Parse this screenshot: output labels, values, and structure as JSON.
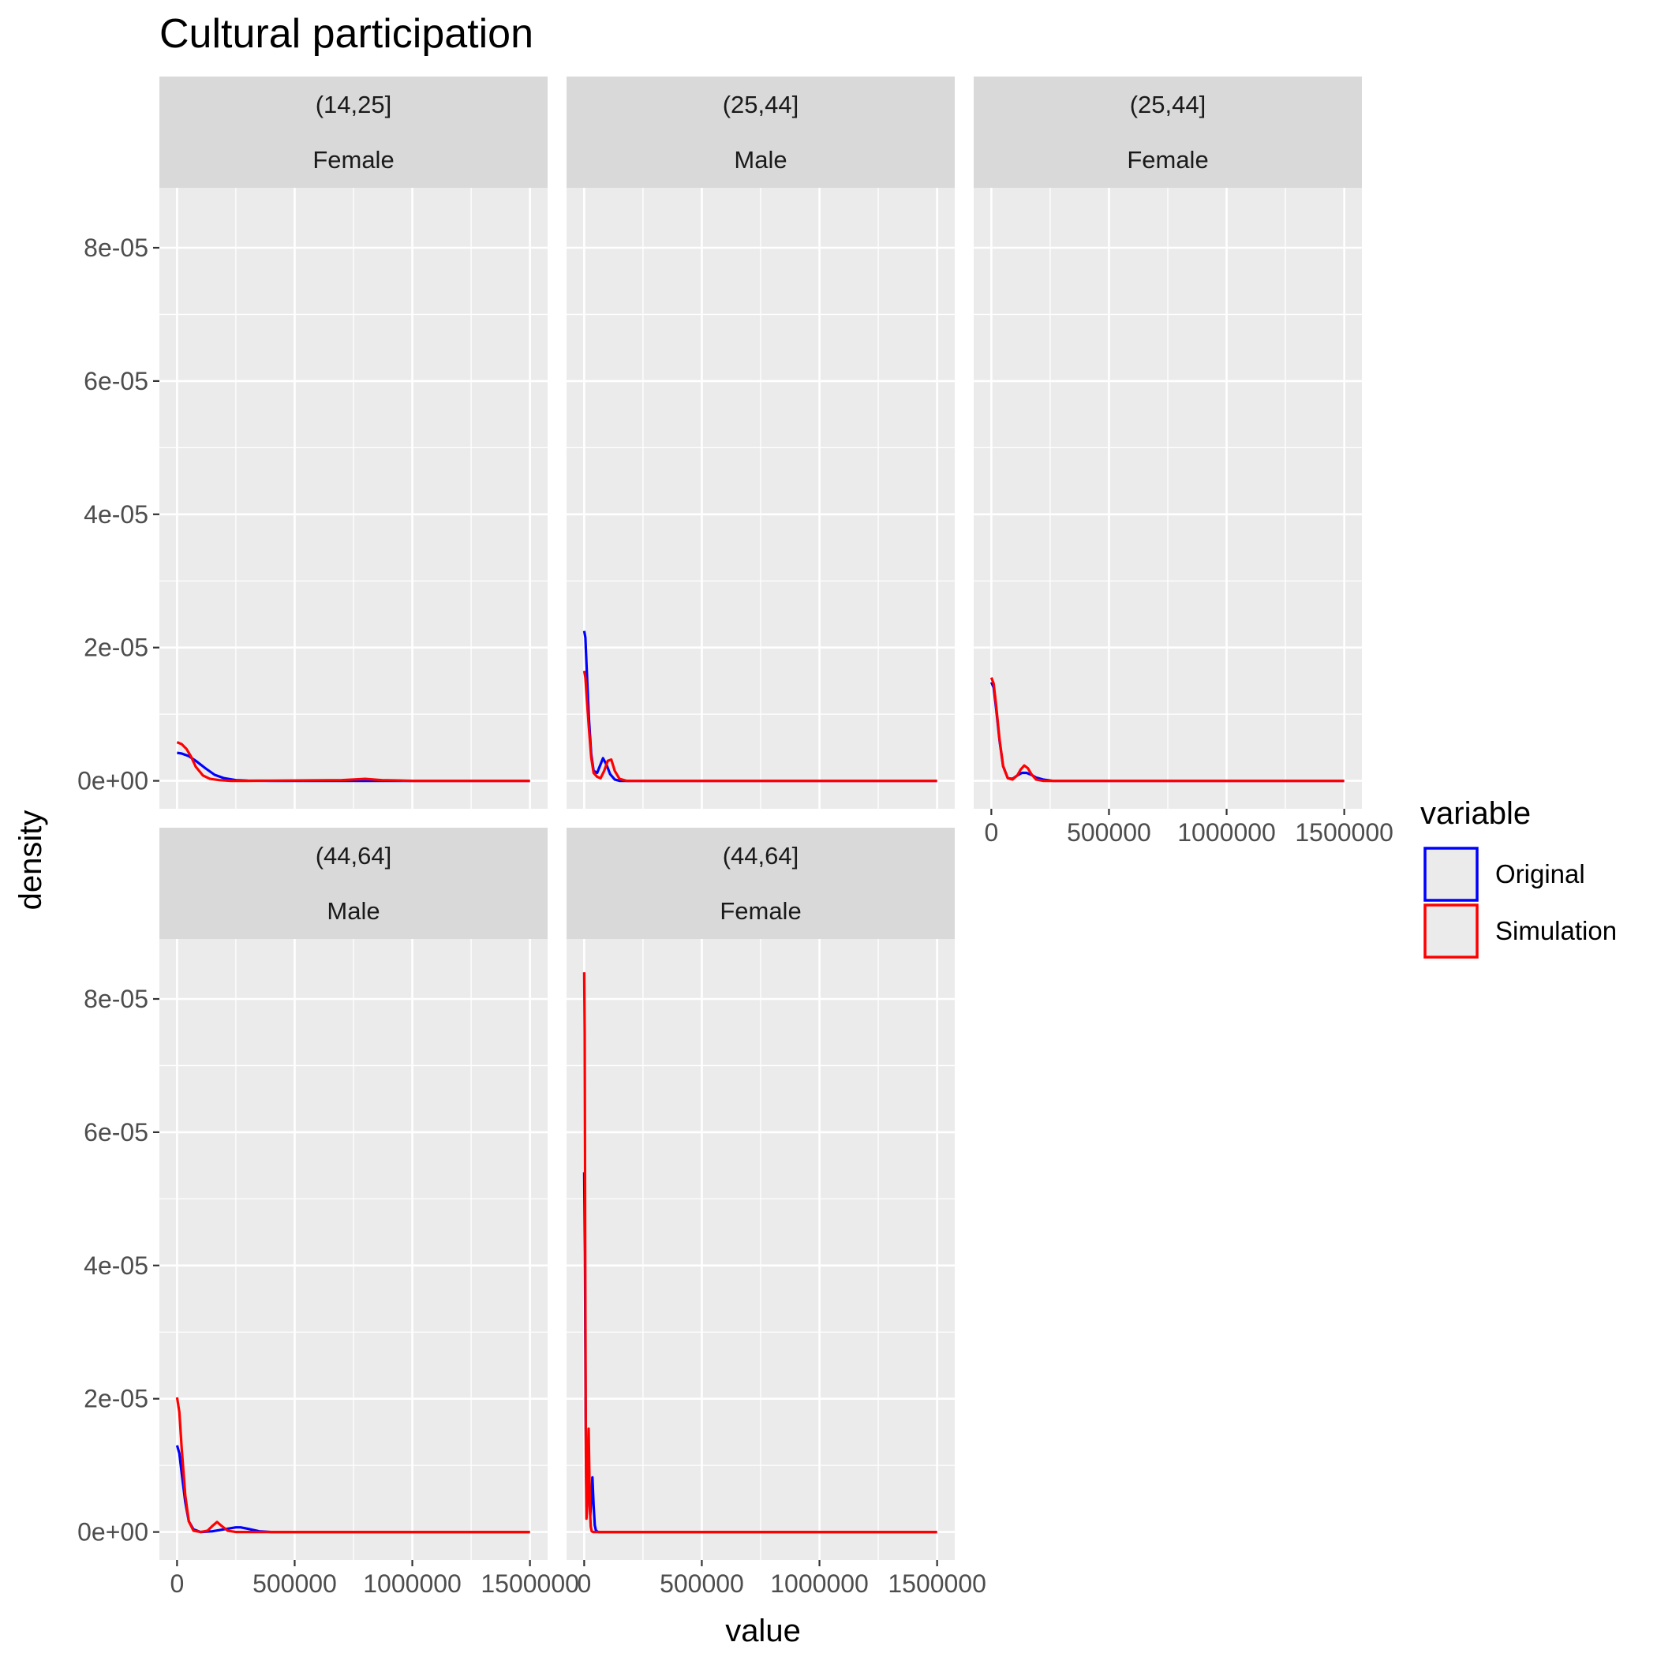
{
  "chart_data": {
    "type": "line",
    "title": "Cultural participation",
    "xlabel": "value",
    "ylabel": "density",
    "xlim": [
      0,
      1500000
    ],
    "ylim": [
      0,
      9e-05
    ],
    "x_ticks": [
      0,
      500000,
      1000000,
      1500000
    ],
    "x_tick_labels": [
      "0",
      "500000",
      "1000000",
      "1500000"
    ],
    "y_ticks": [
      0,
      2e-05,
      4e-05,
      6e-05,
      8e-05
    ],
    "y_tick_labels": [
      "0e+00",
      "2e-05",
      "4e-05",
      "6e-05",
      "8e-05"
    ],
    "grid": true,
    "legend": {
      "title": "variable",
      "position": "right",
      "entries": [
        {
          "name": "Original",
          "color": "#0000ff"
        },
        {
          "name": "Simulation",
          "color": "#ff0000"
        }
      ]
    },
    "colors": {
      "Original": "#0000ff",
      "Simulation": "#ff0000"
    },
    "panels": [
      {
        "strip": [
          "(14,25]",
          "Female"
        ],
        "series": [
          {
            "name": "Original",
            "x": [
              0,
              20000,
              50000,
              80000,
              120000,
              160000,
              200000,
              250000,
              300000,
              400000,
              600000,
              800000,
              1000000,
              1500000
            ],
            "values": [
              4.2e-06,
              4.1e-06,
              3.7e-06,
              3e-06,
              1.9e-06,
              9e-07,
              4e-07,
              1e-07,
              3e-08,
              0,
              0,
              0,
              0,
              0
            ]
          },
          {
            "name": "Simulation",
            "x": [
              0,
              20000,
              40000,
              60000,
              80000,
              110000,
              140000,
              180000,
              230000,
              300000,
              700000,
              800000,
              870000,
              1000000,
              1500000
            ],
            "values": [
              5.8e-06,
              5.5e-06,
              4.8e-06,
              3.6e-06,
              2.1e-06,
              8e-07,
              3e-07,
              1e-07,
              0,
              0,
              1e-07,
              3e-07,
              1e-07,
              0,
              0
            ]
          }
        ]
      },
      {
        "strip": [
          "(25,44]",
          "Male"
        ],
        "series": [
          {
            "name": "Original",
            "x": [
              0,
              5000,
              10000,
              20000,
              30000,
              40000,
              55000,
              70000,
              80000,
              95000,
              110000,
              130000,
              150000,
              200000,
              1500000
            ],
            "values": [
              2.25e-05,
              2.15e-05,
              1.75e-05,
              9.5e-06,
              4e-06,
              1.5e-06,
              1.2e-06,
              2.5e-06,
              3.4e-06,
              2.4e-06,
              1e-06,
              2e-07,
              0,
              0,
              0
            ]
          },
          {
            "name": "Simulation",
            "x": [
              0,
              5000,
              10000,
              20000,
              30000,
              40000,
              55000,
              70000,
              85000,
              100000,
              115000,
              130000,
              150000,
              180000,
              1500000
            ],
            "values": [
              1.65e-05,
              1.55e-05,
              1.3e-05,
              8e-06,
              3.5e-06,
              1.2e-06,
              6e-07,
              4e-07,
              1.5e-06,
              3e-06,
              3.2e-06,
              1.5e-06,
              3e-07,
              0,
              0
            ]
          }
        ]
      },
      {
        "strip": [
          "(25,44]",
          "Female"
        ],
        "series": [
          {
            "name": "Original",
            "x": [
              0,
              10000,
              20000,
              35000,
              50000,
              70000,
              90000,
              110000,
              130000,
              150000,
              170000,
              190000,
              220000,
              260000,
              1500000
            ],
            "values": [
              1.48e-05,
              1.4e-05,
              1.1e-05,
              6e-06,
              2.2e-06,
              4e-07,
              3e-07,
              8e-07,
              1.2e-06,
              1.2e-06,
              9e-07,
              5e-07,
              2e-07,
              0,
              0
            ]
          },
          {
            "name": "Simulation",
            "x": [
              0,
              10000,
              20000,
              35000,
              50000,
              70000,
              90000,
              110000,
              125000,
              140000,
              155000,
              170000,
              190000,
              220000,
              1500000
            ],
            "values": [
              1.55e-05,
              1.46e-05,
              1.15e-05,
              6.2e-06,
              2.2e-06,
              4e-07,
              2e-07,
              8e-07,
              1.7e-06,
              2.3e-06,
              1.9e-06,
              1e-06,
              2e-07,
              0,
              0
            ]
          }
        ]
      },
      {
        "strip": [
          "(44,64]",
          "Male"
        ],
        "series": [
          {
            "name": "Original",
            "x": [
              0,
              10000,
              20000,
              35000,
              50000,
              70000,
              100000,
              150000,
              200000,
              250000,
              270000,
              300000,
              350000,
              400000,
              1500000
            ],
            "values": [
              1.3e-05,
              1.18e-05,
              8.8e-06,
              4.5e-06,
              1.6e-06,
              4e-07,
              0,
              1e-07,
              4e-07,
              7e-07,
              7e-07,
              5e-07,
              1e-07,
              0,
              0
            ]
          },
          {
            "name": "Simulation",
            "x": [
              0,
              10000,
              20000,
              35000,
              50000,
              70000,
              100000,
              130000,
              150000,
              170000,
              190000,
              215000,
              250000,
              1500000
            ],
            "values": [
              2.02e-05,
              1.8e-05,
              1.25e-05,
              5.5e-06,
              1.6e-06,
              2e-07,
              0,
              2e-07,
              9e-07,
              1.5e-06,
              9e-07,
              2e-07,
              0,
              0
            ]
          }
        ]
      },
      {
        "strip": [
          "(44,64]",
          "Female"
        ],
        "series": [
          {
            "name": "Original",
            "x": [
              0,
              3000,
              6000,
              10000,
              14000,
              18000,
              22000,
              26000,
              30000,
              35000,
              40000,
              45000,
              50000,
              60000,
              1500000
            ],
            "values": [
              5.4e-05,
              4.2e-05,
              1.8e-05,
              4e-06,
              6e-06,
              1.2e-05,
              5e-06,
              2.5e-06,
              5e-06,
              8.2e-06,
              4e-06,
              1e-06,
              2e-07,
              0,
              0
            ]
          },
          {
            "name": "Simulation",
            "x": [
              0,
              2000,
              4000,
              7000,
              10000,
              13000,
              16000,
              19000,
              22000,
              25000,
              28000,
              32000,
              38000,
              1500000
            ],
            "values": [
              8.4e-05,
              7.5e-05,
              4.5e-05,
              1.2e-05,
              2e-06,
              4e-06,
              1.1e-05,
              1.55e-05,
              9e-06,
              3e-06,
              8e-07,
              1e-07,
              0,
              0
            ]
          }
        ]
      }
    ]
  }
}
